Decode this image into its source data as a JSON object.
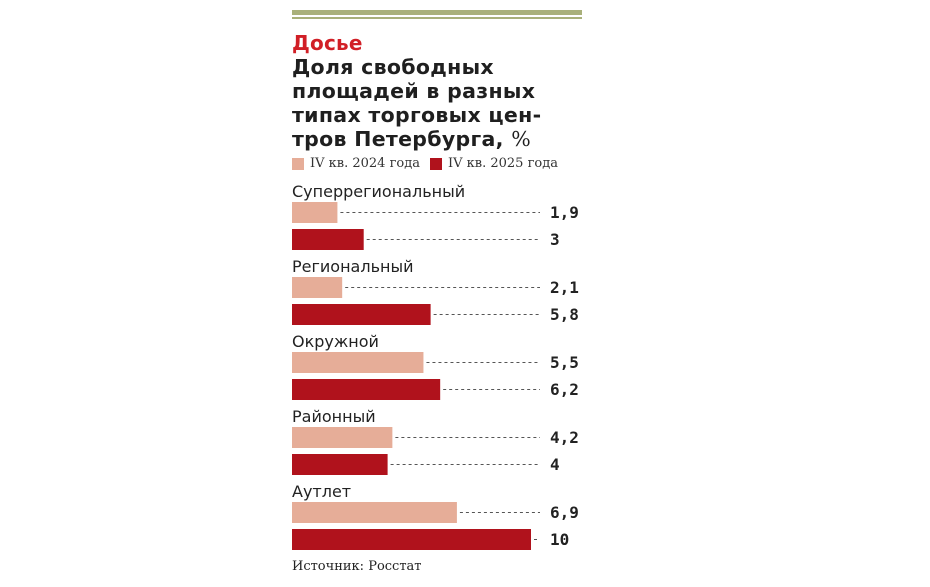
{
  "header": {
    "kicker": "Досье",
    "title_main": "Доля свободных площадей в разных типах торговых цен-тров Петербурга,",
    "title_unit": "%"
  },
  "legend": [
    {
      "label": "IV кв. 2024 года",
      "color": "#e6ad98"
    },
    {
      "label": "IV кв. 2025 года",
      "color": "#b0121c"
    }
  ],
  "chart_data": {
    "type": "bar",
    "orientation": "horizontal",
    "categories": [
      "Суперрегиональный",
      "Региональный",
      "Окружной",
      "Районный",
      "Аутлет"
    ],
    "series": [
      {
        "name": "IV кв. 2024 года",
        "values": [
          1.9,
          2.1,
          5.5,
          4.2,
          6.9
        ],
        "labels": [
          "1,9",
          "2,1",
          "5,5",
          "4,2",
          "6,9"
        ],
        "color": "#e6ad98"
      },
      {
        "name": "IV кв. 2025 года",
        "values": [
          3,
          5.8,
          6.2,
          4,
          10
        ],
        "labels": [
          "3",
          "5,8",
          "6,2",
          "4",
          "10"
        ],
        "color": "#b0121c"
      }
    ],
    "xlim": [
      0,
      10
    ]
  },
  "footer": {
    "source": "Источник: Росстат"
  }
}
